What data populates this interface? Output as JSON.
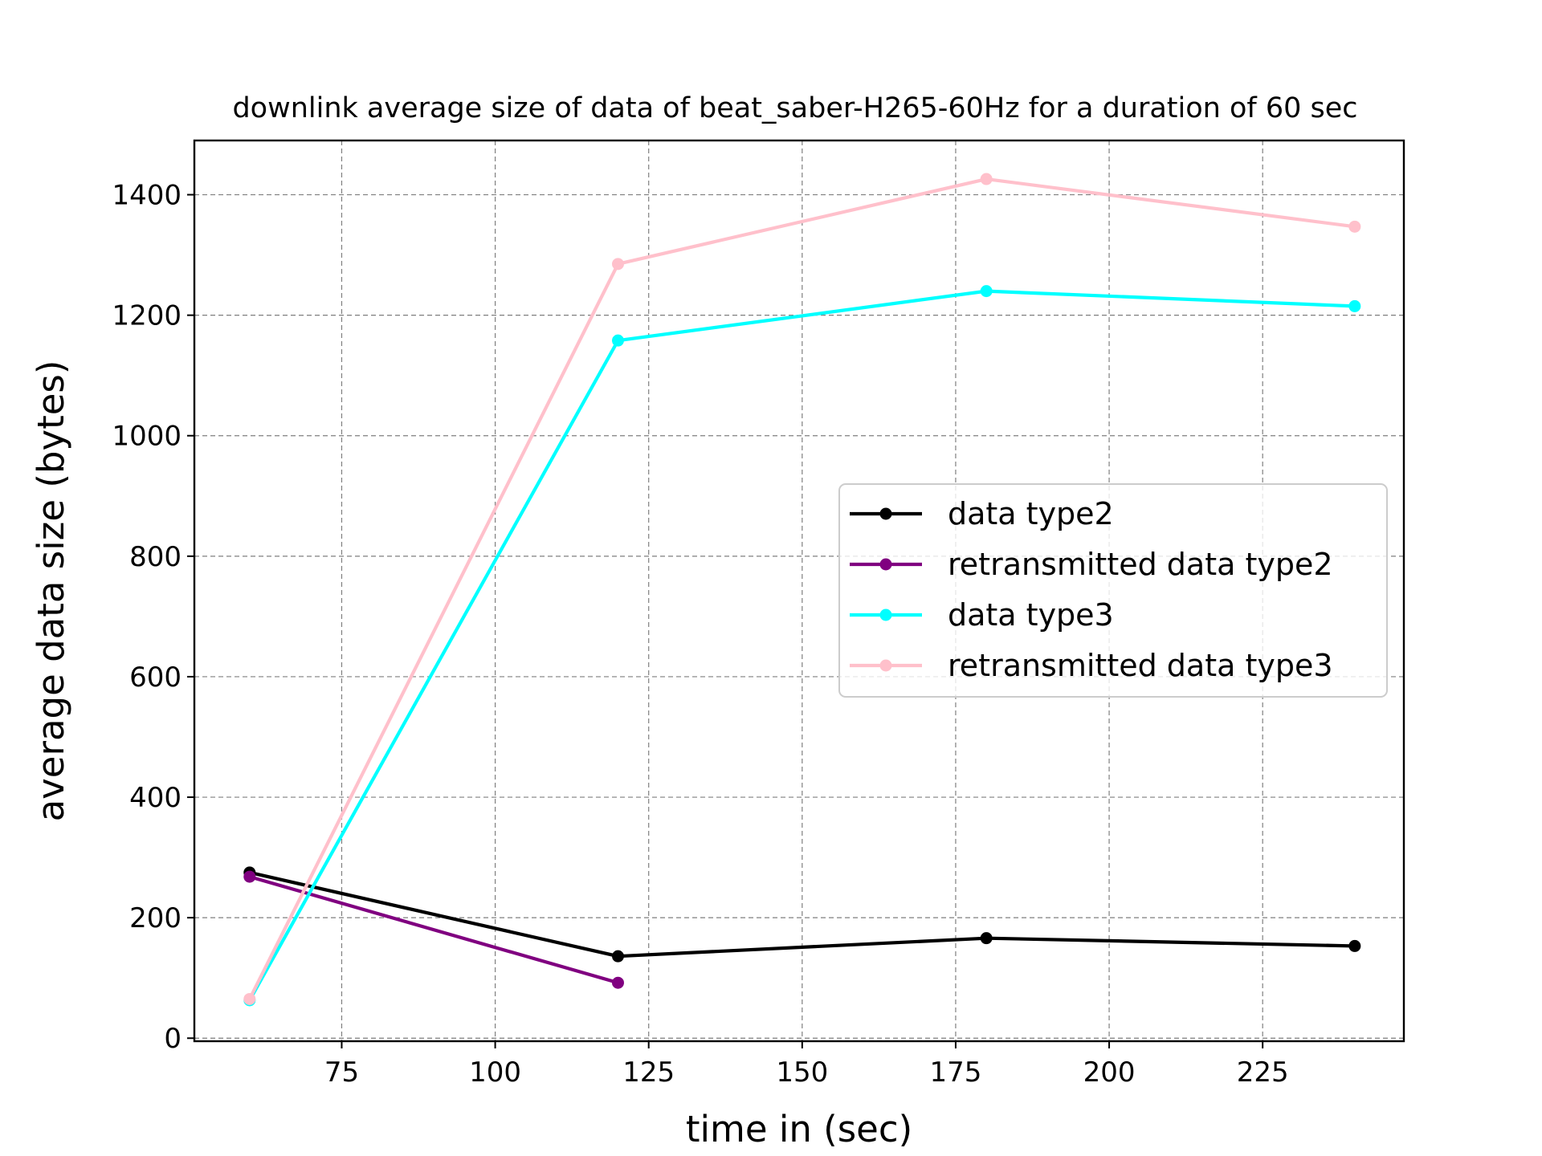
{
  "chart_data": {
    "type": "line",
    "title": "downlink average size of data of beat_saber-H265-60Hz for a duration of 60 sec",
    "xlabel": "time in (sec)",
    "ylabel": "average data size (bytes)",
    "xlim": [
      51,
      248
    ],
    "ylim": [
      -5,
      1490
    ],
    "xticks": [
      75,
      100,
      125,
      150,
      175,
      200,
      225
    ],
    "yticks": [
      0,
      200,
      400,
      600,
      800,
      1000,
      1200,
      1400
    ],
    "grid": true,
    "legend_position": "center-right",
    "series": [
      {
        "name": "data type2",
        "color": "#000000",
        "x": [
          60,
          120,
          180,
          240
        ],
        "y": [
          275,
          136,
          166,
          153
        ]
      },
      {
        "name": "retransmitted data type2",
        "color": "#800080",
        "x": [
          60,
          120
        ],
        "y": [
          268,
          92
        ]
      },
      {
        "name": "data type3",
        "color": "#00ffff",
        "x": [
          60,
          120,
          180,
          240
        ],
        "y": [
          63,
          1158,
          1240,
          1215
        ]
      },
      {
        "name": "retransmitted data type3",
        "color": "#ffc0cb",
        "x": [
          60,
          120,
          180,
          240
        ],
        "y": [
          65,
          1285,
          1426,
          1347
        ]
      }
    ]
  }
}
